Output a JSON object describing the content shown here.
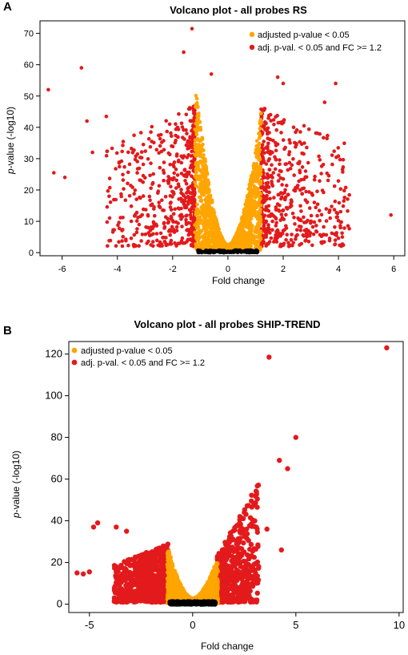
{
  "chart_data": [
    {
      "panel": "A",
      "type": "scatter",
      "title": "Volcano plot - all probes RS",
      "xlabel": "Fold change",
      "ylabel": "p-value (-log10)",
      "xlim": [
        -6.8,
        6.4
      ],
      "ylim": [
        -1,
        74
      ],
      "xticks": [
        -6,
        -4,
        -2,
        0,
        2,
        4,
        6
      ],
      "yticks": [
        0,
        10,
        20,
        30,
        40,
        50,
        60,
        70
      ],
      "legend_position": "top-right",
      "grid": false,
      "colors": {
        "not_significant": "#000000",
        "adjusted": "#FFA500",
        "adjusted_fc": "#E31A1C"
      },
      "series": [
        {
          "name": "adjusted p-value < 0.05",
          "color": "#FFA500",
          "x_range": [
            -1.2,
            1.2
          ],
          "shape": "v-shaped cloud, peak ~54 at x=-1.1"
        },
        {
          "name": "adj. p-val. < 0.05 and FC >= 1.2",
          "color": "#E31A1C",
          "shape": "points with |x| >= 1.2",
          "outliers": [
            [
              -6.5,
              52
            ],
            [
              -6.3,
              25.5
            ],
            [
              -5.9,
              24
            ],
            [
              -5.3,
              59
            ],
            [
              -5.1,
              42
            ],
            [
              -4.9,
              32
            ],
            [
              -4.4,
              43.5
            ],
            [
              -1.3,
              71.5
            ],
            [
              -1.6,
              64
            ],
            [
              -0.6,
              57
            ],
            [
              1.8,
              56
            ],
            [
              2.0,
              54
            ],
            [
              3.4,
              3
            ],
            [
              3.5,
              48
            ],
            [
              3.7,
              11
            ],
            [
              3.9,
              54
            ],
            [
              5.9,
              12
            ]
          ]
        }
      ]
    },
    {
      "panel": "B",
      "type": "scatter",
      "title": "Volcano plot - all probes SHIP-TREND",
      "xlabel": "Fold change",
      "ylabel": "p-value (-log10)",
      "xlim": [
        -6,
        10.2
      ],
      "ylim": [
        -4,
        126
      ],
      "xticks": [
        -5,
        0,
        5,
        10
      ],
      "yticks": [
        0,
        20,
        40,
        60,
        80,
        100,
        120
      ],
      "legend_position": "top-left",
      "grid": false,
      "colors": {
        "not_significant": "#000000",
        "adjusted": "#FFA500",
        "adjusted_fc": "#E31A1C"
      },
      "series": [
        {
          "name": "adjusted p-value < 0.05",
          "color": "#FFA500",
          "x_range": [
            -1.2,
            1.2
          ],
          "shape": "v-shaped cloud, peak ~24 at x=-1.1"
        },
        {
          "name": "adj. p-val. < 0.05 and FC >= 1.2",
          "color": "#E31A1C",
          "shape": "points with |x| >= 1.2",
          "outliers": [
            [
              -5.6,
              15
            ],
            [
              -5.3,
              14.5
            ],
            [
              -5.0,
              15.5
            ],
            [
              -4.8,
              37
            ],
            [
              -4.6,
              39
            ],
            [
              -3.7,
              37
            ],
            [
              -3.2,
              35
            ],
            [
              3.6,
              36
            ],
            [
              3.7,
              118.5
            ],
            [
              4.2,
              69
            ],
            [
              4.3,
              26
            ],
            [
              4.6,
              65
            ],
            [
              5.0,
              80
            ],
            [
              9.4,
              123
            ]
          ]
        }
      ]
    }
  ]
}
